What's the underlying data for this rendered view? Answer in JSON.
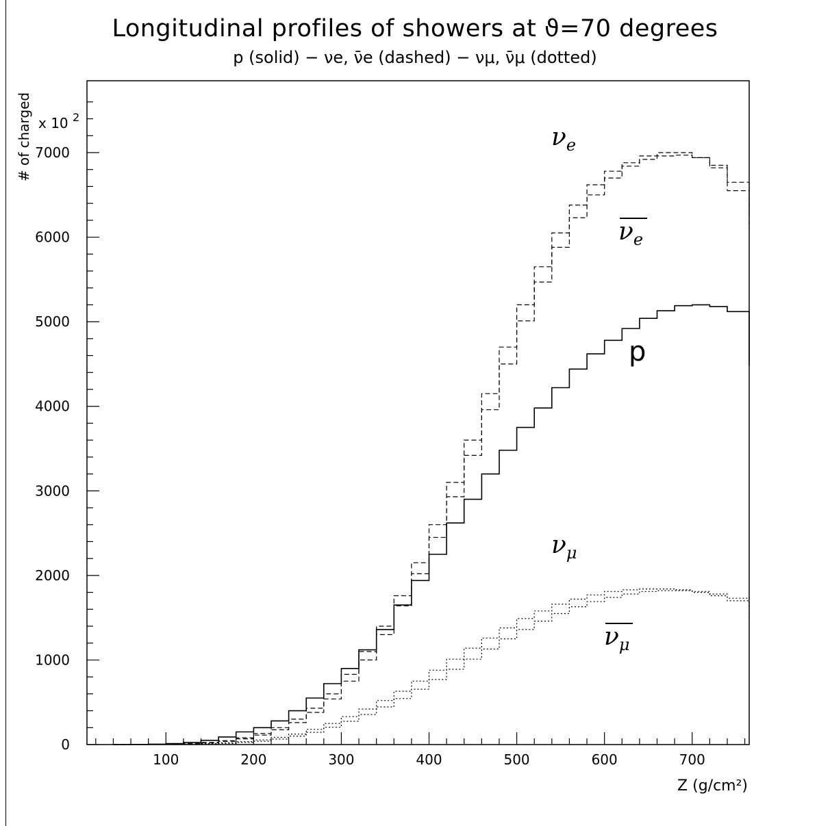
{
  "chart_data": {
    "type": "line",
    "title": "Longitudinal profiles of showers at ϑ=70 degrees",
    "subtitle": "p (solid) − νe, ν̄e (dashed) − νμ, ν̄μ (dotted)",
    "xlabel": "Z (g/cm²)",
    "ylabel": "# of charged",
    "y_multiplier_label": "x 10",
    "y_multiplier_exp": "2",
    "xlim": [
      10,
      765
    ],
    "ylim": [
      0,
      7800
    ],
    "x_ticks": [
      100,
      200,
      300,
      400,
      500,
      600,
      700
    ],
    "y_ticks": [
      0,
      1000,
      2000,
      3000,
      4000,
      5000,
      6000,
      7000
    ],
    "grid": false,
    "bin_edges": [
      40,
      60,
      80,
      100,
      120,
      140,
      160,
      180,
      200,
      220,
      240,
      260,
      280,
      300,
      320,
      340,
      360,
      380,
      400,
      420,
      440,
      460,
      480,
      500,
      520,
      540,
      560,
      580,
      600,
      620,
      640,
      660,
      680,
      700,
      720,
      740,
      765
    ],
    "series": [
      {
        "name": "p",
        "style": "solid",
        "values": [
          0,
          2,
          5,
          12,
          25,
          50,
          90,
          150,
          200,
          280,
          400,
          550,
          720,
          900,
          1120,
          1360,
          1650,
          1940,
          2250,
          2620,
          2900,
          3200,
          3480,
          3750,
          3980,
          4220,
          4440,
          4620,
          4780,
          4920,
          5040,
          5130,
          5190,
          5200,
          5180,
          5120,
          4480
        ]
      },
      {
        "name": "νe",
        "style": "dashed",
        "values": [
          0,
          1,
          3,
          6,
          12,
          25,
          45,
          80,
          130,
          200,
          300,
          430,
          600,
          830,
          1100,
          1400,
          1760,
          2150,
          2600,
          3100,
          3600,
          4150,
          4700,
          5200,
          5650,
          6050,
          6380,
          6620,
          6780,
          6880,
          6960,
          7000,
          7000,
          6940,
          6820,
          6550,
          6100
        ]
      },
      {
        "name": "ν̄e",
        "style": "dashed",
        "values": [
          0,
          1,
          2,
          5,
          10,
          20,
          38,
          68,
          112,
          175,
          260,
          380,
          540,
          750,
          1000,
          1300,
          1640,
          2020,
          2450,
          2930,
          3420,
          3960,
          4500,
          5010,
          5470,
          5880,
          6230,
          6500,
          6700,
          6840,
          6920,
          6960,
          6970,
          6940,
          6850,
          6650,
          6280
        ]
      },
      {
        "name": "νμ",
        "style": "dotted",
        "values": [
          0,
          1,
          2,
          4,
          7,
          12,
          20,
          35,
          55,
          85,
          125,
          180,
          250,
          330,
          420,
          520,
          630,
          750,
          880,
          1010,
          1140,
          1260,
          1380,
          1490,
          1580,
          1660,
          1720,
          1770,
          1810,
          1830,
          1840,
          1840,
          1830,
          1800,
          1760,
          1700,
          1500
        ]
      },
      {
        "name": "ν̄μ",
        "style": "dotted",
        "values": [
          0,
          0,
          1,
          2,
          4,
          8,
          14,
          25,
          40,
          65,
          100,
          145,
          205,
          275,
          355,
          445,
          545,
          655,
          770,
          890,
          1010,
          1130,
          1250,
          1360,
          1460,
          1550,
          1630,
          1690,
          1740,
          1780,
          1810,
          1820,
          1820,
          1810,
          1780,
          1730,
          1600
        ]
      }
    ],
    "annotations": [
      {
        "series": "νe",
        "base": "ν",
        "sub": "e",
        "overline": false
      },
      {
        "series": "ν̄e",
        "base": "ν",
        "sub": "e",
        "overline": true
      },
      {
        "series": "p",
        "base": "p",
        "sub": "",
        "overline": false
      },
      {
        "series": "νμ",
        "base": "ν",
        "sub": "μ",
        "overline": false
      },
      {
        "series": "ν̄μ",
        "base": "ν",
        "sub": "μ",
        "overline": true
      }
    ]
  }
}
